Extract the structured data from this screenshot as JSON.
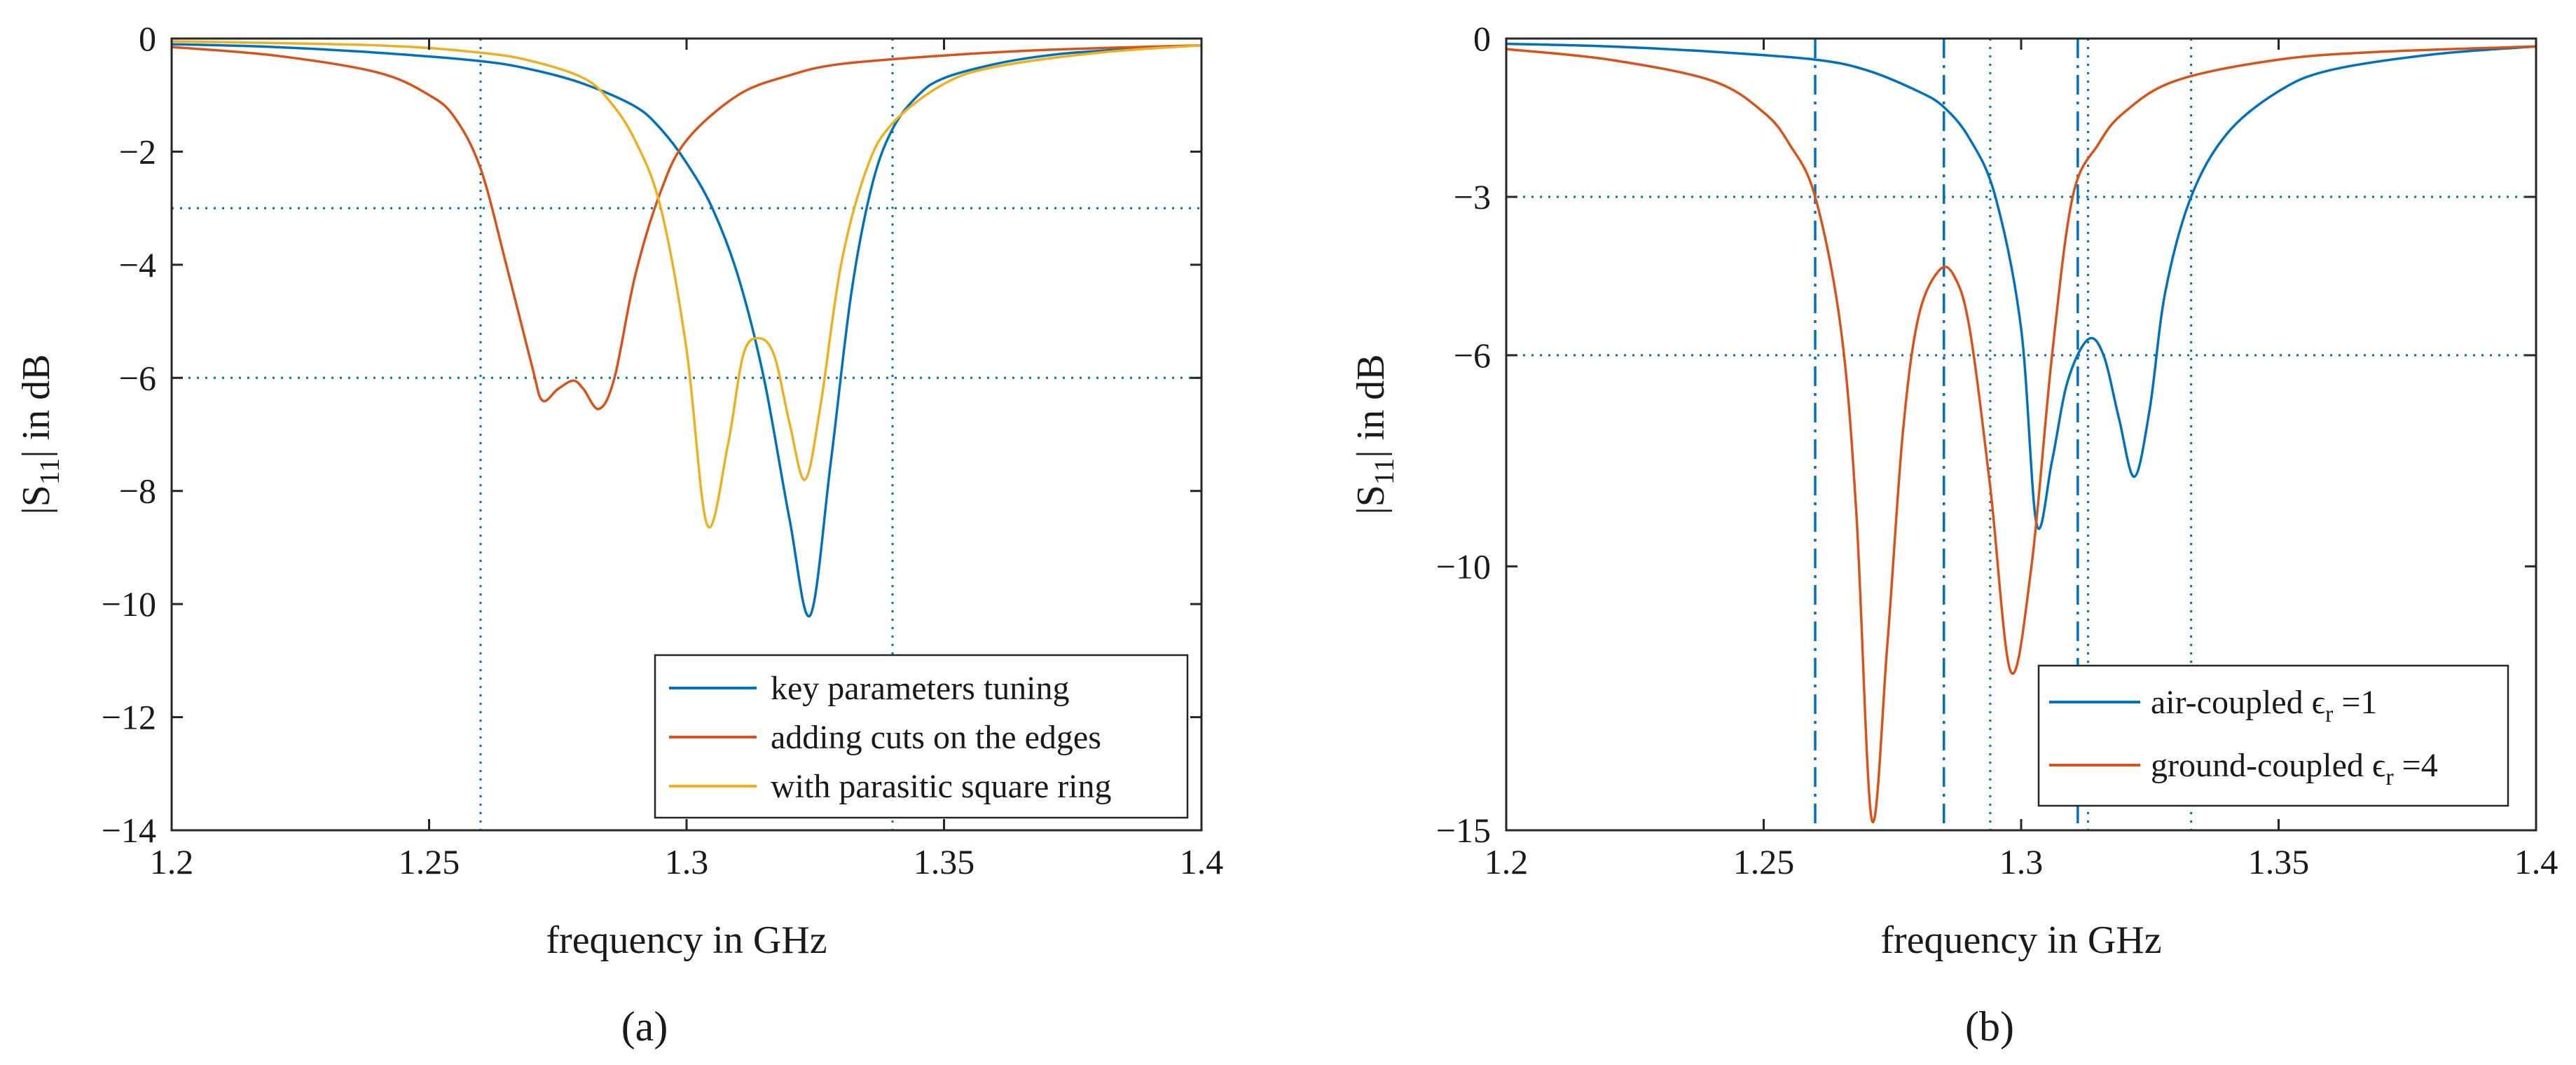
{
  "chart_data": [
    {
      "type": "line",
      "panel_label": "(a)",
      "xlabel": "frequency in GHz",
      "ylabel": "|S11| in dB",
      "ylabel_main": "|S",
      "ylabel_sub": "11",
      "ylabel_rest": "| in dB",
      "xlim": [
        1.2,
        1.4
      ],
      "ylim": [
        -14,
        0
      ],
      "xticks": [
        1.2,
        1.25,
        1.3,
        1.35,
        1.4
      ],
      "xtick_labels": [
        "1.2",
        "1.25",
        "1.3",
        "1.35",
        "1.4"
      ],
      "yticks": [
        0,
        -2,
        -4,
        -6,
        -8,
        -10,
        -12,
        -14
      ],
      "ytick_labels": [
        "0",
        "−2",
        "−4",
        "−6",
        "−8",
        "−10",
        "−12",
        "−14"
      ],
      "hlines": [
        -3,
        -6
      ],
      "vlines": [
        1.26,
        1.34
      ],
      "legend_position": "bottom-right",
      "series": [
        {
          "name": "key parameters tuning",
          "color": "#0072BD",
          "points": [
            [
              1.2,
              -0.1
            ],
            [
              1.22,
              -0.15
            ],
            [
              1.24,
              -0.25
            ],
            [
              1.26,
              -0.4
            ],
            [
              1.27,
              -0.55
            ],
            [
              1.28,
              -0.8
            ],
            [
              1.29,
              -1.2
            ],
            [
              1.295,
              -1.6
            ],
            [
              1.3,
              -2.2
            ],
            [
              1.305,
              -3.0
            ],
            [
              1.31,
              -4.2
            ],
            [
              1.315,
              -6.0
            ],
            [
              1.32,
              -8.5
            ],
            [
              1.324,
              -10.2
            ],
            [
              1.328,
              -7.5
            ],
            [
              1.332,
              -4.5
            ],
            [
              1.336,
              -2.6
            ],
            [
              1.34,
              -1.6
            ],
            [
              1.345,
              -1.0
            ],
            [
              1.35,
              -0.7
            ],
            [
              1.36,
              -0.45
            ],
            [
              1.37,
              -0.3
            ],
            [
              1.38,
              -0.22
            ],
            [
              1.4,
              -0.12
            ]
          ]
        },
        {
          "name": "adding cuts on the edges",
          "color": "#D95319",
          "points": [
            [
              1.2,
              -0.15
            ],
            [
              1.22,
              -0.3
            ],
            [
              1.24,
              -0.6
            ],
            [
              1.25,
              -1.0
            ],
            [
              1.255,
              -1.4
            ],
            [
              1.26,
              -2.3
            ],
            [
              1.265,
              -4.0
            ],
            [
              1.27,
              -5.8
            ],
            [
              1.272,
              -6.4
            ],
            [
              1.275,
              -6.2
            ],
            [
              1.278,
              -6.05
            ],
            [
              1.28,
              -6.2
            ],
            [
              1.283,
              -6.55
            ],
            [
              1.286,
              -6.0
            ],
            [
              1.29,
              -4.2
            ],
            [
              1.295,
              -2.7
            ],
            [
              1.3,
              -1.8
            ],
            [
              1.31,
              -1.0
            ],
            [
              1.32,
              -0.65
            ],
            [
              1.33,
              -0.45
            ],
            [
              1.35,
              -0.3
            ],
            [
              1.37,
              -0.2
            ],
            [
              1.4,
              -0.12
            ]
          ]
        },
        {
          "name": "with parasitic square ring",
          "color": "#EDB120",
          "points": [
            [
              1.2,
              -0.05
            ],
            [
              1.24,
              -0.12
            ],
            [
              1.26,
              -0.25
            ],
            [
              1.27,
              -0.4
            ],
            [
              1.28,
              -0.7
            ],
            [
              1.285,
              -1.1
            ],
            [
              1.29,
              -1.8
            ],
            [
              1.295,
              -3.0
            ],
            [
              1.3,
              -5.5
            ],
            [
              1.304,
              -8.6
            ],
            [
              1.308,
              -7.2
            ],
            [
              1.311,
              -5.6
            ],
            [
              1.314,
              -5.3
            ],
            [
              1.317,
              -5.6
            ],
            [
              1.32,
              -6.8
            ],
            [
              1.323,
              -7.8
            ],
            [
              1.326,
              -6.5
            ],
            [
              1.33,
              -4.0
            ],
            [
              1.335,
              -2.3
            ],
            [
              1.34,
              -1.5
            ],
            [
              1.35,
              -0.8
            ],
            [
              1.36,
              -0.5
            ],
            [
              1.38,
              -0.25
            ],
            [
              1.4,
              -0.12
            ]
          ]
        }
      ]
    },
    {
      "type": "line",
      "panel_label": "(b)",
      "xlabel": "frequency in GHz",
      "ylabel": "|S11| in dB",
      "ylabel_main": "|S",
      "ylabel_sub": "11",
      "ylabel_rest": "| in dB",
      "xlim": [
        1.2,
        1.4
      ],
      "ylim": [
        -15,
        0
      ],
      "xticks": [
        1.2,
        1.25,
        1.3,
        1.35,
        1.4
      ],
      "xtick_labels": [
        "1.2",
        "1.25",
        "1.3",
        "1.35",
        "1.4"
      ],
      "yticks": [
        0,
        -3,
        -6,
        -10,
        -15
      ],
      "ytick_labels": [
        "0",
        "−3",
        "−6",
        "−10",
        "−15"
      ],
      "hlines": [
        -3,
        -6
      ],
      "vlines_dashdot": [
        1.26,
        1.285,
        1.311
      ],
      "vlines_dotted": [
        1.294,
        1.313,
        1.333
      ],
      "legend_position": "bottom-right",
      "series": [
        {
          "name": "air-coupled ϵr =1",
          "legend_main": "air-coupled ϵ",
          "legend_sub": "r",
          "legend_rest": " =1",
          "color": "#0072BD",
          "points": [
            [
              1.2,
              -0.1
            ],
            [
              1.22,
              -0.15
            ],
            [
              1.24,
              -0.25
            ],
            [
              1.26,
              -0.4
            ],
            [
              1.27,
              -0.6
            ],
            [
              1.28,
              -1.0
            ],
            [
              1.285,
              -1.3
            ],
            [
              1.29,
              -1.9
            ],
            [
              1.295,
              -3.0
            ],
            [
              1.3,
              -5.5
            ],
            [
              1.303,
              -9.2
            ],
            [
              1.306,
              -8.0
            ],
            [
              1.309,
              -6.5
            ],
            [
              1.313,
              -5.7
            ],
            [
              1.316,
              -6.0
            ],
            [
              1.319,
              -7.2
            ],
            [
              1.322,
              -8.3
            ],
            [
              1.325,
              -7.0
            ],
            [
              1.328,
              -4.8
            ],
            [
              1.333,
              -3.0
            ],
            [
              1.34,
              -1.8
            ],
            [
              1.35,
              -1.0
            ],
            [
              1.36,
              -0.6
            ],
            [
              1.38,
              -0.3
            ],
            [
              1.4,
              -0.15
            ]
          ]
        },
        {
          "name": "ground-coupled ϵr =4",
          "legend_main": "ground-coupled ϵ",
          "legend_sub": "r",
          "legend_rest": " =4",
          "color": "#D95319",
          "points": [
            [
              1.2,
              -0.2
            ],
            [
              1.22,
              -0.4
            ],
            [
              1.24,
              -0.8
            ],
            [
              1.25,
              -1.4
            ],
            [
              1.255,
              -2.0
            ],
            [
              1.26,
              -3.0
            ],
            [
              1.265,
              -5.5
            ],
            [
              1.268,
              -9.0
            ],
            [
              1.271,
              -14.8
            ],
            [
              1.274,
              -11.5
            ],
            [
              1.277,
              -7.5
            ],
            [
              1.28,
              -5.3
            ],
            [
              1.284,
              -4.4
            ],
            [
              1.287,
              -4.5
            ],
            [
              1.29,
              -5.5
            ],
            [
              1.294,
              -8.5
            ],
            [
              1.298,
              -12.0
            ],
            [
              1.302,
              -10.0
            ],
            [
              1.306,
              -6.0
            ],
            [
              1.31,
              -3.0
            ],
            [
              1.315,
              -2.0
            ],
            [
              1.32,
              -1.4
            ],
            [
              1.33,
              -0.8
            ],
            [
              1.35,
              -0.4
            ],
            [
              1.37,
              -0.25
            ],
            [
              1.4,
              -0.15
            ]
          ]
        }
      ]
    }
  ]
}
